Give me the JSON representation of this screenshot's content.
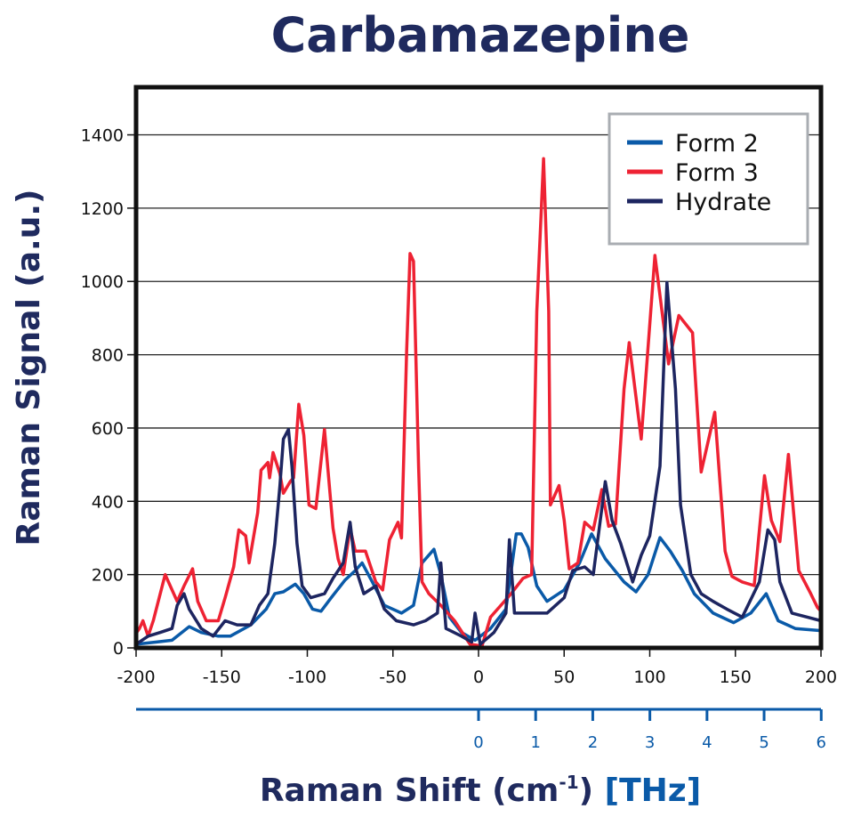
{
  "chart_data": {
    "type": "line",
    "title": "Carbamazepine",
    "xlabel": "Raman Shift (cm-1)",
    "xlabel_parts": {
      "main": "Raman Shift (cm",
      "sup": "-1",
      "close": ")",
      "secondary": "[THz]"
    },
    "ylabel": "Raman Signal (a.u.)",
    "xlim": [
      -200,
      200
    ],
    "ylim": [
      0,
      1530
    ],
    "xticks": [
      -200,
      -150,
      -100,
      -50,
      0,
      50,
      100,
      150,
      200
    ],
    "yticks": [
      0,
      200,
      400,
      600,
      800,
      1000,
      1200,
      1400
    ],
    "secondary_xaxis": {
      "unit": "THz",
      "ticks": [
        0,
        1,
        2,
        3,
        4,
        5,
        6
      ],
      "color": "#0a5aa8"
    },
    "grid": "horizontal",
    "legend_position": "top-right",
    "series": [
      {
        "name": "Form 2",
        "color": "#0a5aa8",
        "points": [
          [
            -200,
            10
          ],
          [
            -188,
            16
          ],
          [
            -179,
            21
          ],
          [
            -169,
            58
          ],
          [
            -162,
            42
          ],
          [
            -152,
            32
          ],
          [
            -145,
            32
          ],
          [
            -133,
            63
          ],
          [
            -124,
            106
          ],
          [
            -119,
            148
          ],
          [
            -114,
            153
          ],
          [
            -107,
            174
          ],
          [
            -102,
            148
          ],
          [
            -97,
            106
          ],
          [
            -92,
            100
          ],
          [
            -86,
            137
          ],
          [
            -78,
            185
          ],
          [
            -72,
            211
          ],
          [
            -68,
            232
          ],
          [
            -62,
            180
          ],
          [
            -55,
            116
          ],
          [
            -45,
            95
          ],
          [
            -38,
            116
          ],
          [
            -33,
            232
          ],
          [
            -26,
            269
          ],
          [
            -22,
            200
          ],
          [
            -17,
            84
          ],
          [
            -10,
            42
          ],
          [
            -2,
            21
          ],
          [
            7,
            53
          ],
          [
            16,
            106
          ],
          [
            22,
            311
          ],
          [
            25,
            311
          ],
          [
            29,
            274
          ],
          [
            34,
            169
          ],
          [
            40,
            127
          ],
          [
            50,
            158
          ],
          [
            59,
            232
          ],
          [
            66,
            311
          ],
          [
            74,
            243
          ],
          [
            85,
            180
          ],
          [
            92,
            153
          ],
          [
            99,
            200
          ],
          [
            106,
            301
          ],
          [
            112,
            264
          ],
          [
            119,
            211
          ],
          [
            126,
            148
          ],
          [
            137,
            95
          ],
          [
            149,
            69
          ],
          [
            159,
            95
          ],
          [
            168,
            148
          ],
          [
            175,
            74
          ],
          [
            185,
            53
          ],
          [
            200,
            47
          ]
        ]
      },
      {
        "name": "Form 3",
        "color": "#ee2233",
        "points": [
          [
            -200,
            40
          ],
          [
            -198,
            53
          ],
          [
            -196,
            74
          ],
          [
            -193,
            32
          ],
          [
            -190,
            74
          ],
          [
            -183,
            200
          ],
          [
            -176,
            127
          ],
          [
            -172,
            169
          ],
          [
            -167,
            216
          ],
          [
            -164,
            127
          ],
          [
            -159,
            74
          ],
          [
            -152,
            74
          ],
          [
            -148,
            137
          ],
          [
            -143,
            221
          ],
          [
            -140,
            322
          ],
          [
            -136,
            306
          ],
          [
            -134,
            232
          ],
          [
            -129,
            369
          ],
          [
            -127,
            485
          ],
          [
            -123,
            506
          ],
          [
            -122,
            464
          ],
          [
            -120,
            533
          ],
          [
            -116,
            475
          ],
          [
            -114,
            422
          ],
          [
            -110,
            454
          ],
          [
            -108,
            464
          ],
          [
            -105,
            665
          ],
          [
            -102,
            580
          ],
          [
            -99,
            390
          ],
          [
            -95,
            380
          ],
          [
            -90,
            596
          ],
          [
            -85,
            327
          ],
          [
            -82,
            243
          ],
          [
            -79,
            200
          ],
          [
            -75,
            327
          ],
          [
            -72,
            264
          ],
          [
            -66,
            264
          ],
          [
            -60,
            180
          ],
          [
            -56,
            158
          ],
          [
            -52,
            295
          ],
          [
            -47,
            343
          ],
          [
            -45,
            300
          ],
          [
            -42,
            812
          ],
          [
            -40,
            1076
          ],
          [
            -38,
            1055
          ],
          [
            -35,
            496
          ],
          [
            -33,
            180
          ],
          [
            -29,
            148
          ],
          [
            -22,
            116
          ],
          [
            -14,
            74
          ],
          [
            -5,
            10
          ],
          [
            2,
            5
          ],
          [
            7,
            84
          ],
          [
            19,
            148
          ],
          [
            26,
            190
          ],
          [
            31,
            200
          ],
          [
            34,
            918
          ],
          [
            38,
            1335
          ],
          [
            41,
            918
          ],
          [
            42,
            390
          ],
          [
            47,
            443
          ],
          [
            50,
            348
          ],
          [
            53,
            216
          ],
          [
            58,
            232
          ],
          [
            62,
            343
          ],
          [
            67,
            322
          ],
          [
            72,
            432
          ],
          [
            76,
            332
          ],
          [
            80,
            338
          ],
          [
            85,
            707
          ],
          [
            88,
            833
          ],
          [
            95,
            570
          ],
          [
            103,
            1071
          ],
          [
            111,
            775
          ],
          [
            117,
            907
          ],
          [
            125,
            860
          ],
          [
            130,
            480
          ],
          [
            138,
            643
          ],
          [
            144,
            264
          ],
          [
            148,
            195
          ],
          [
            154,
            180
          ],
          [
            161,
            170
          ],
          [
            167,
            470
          ],
          [
            171,
            348
          ],
          [
            176,
            290
          ],
          [
            181,
            528
          ],
          [
            187,
            211
          ],
          [
            194,
            148
          ],
          [
            198,
            110
          ],
          [
            200,
            100
          ]
        ]
      },
      {
        "name": "Hydrate",
        "color": "#1d2560",
        "points": [
          [
            -200,
            10
          ],
          [
            -193,
            32
          ],
          [
            -186,
            42
          ],
          [
            -179,
            53
          ],
          [
            -176,
            116
          ],
          [
            -172,
            148
          ],
          [
            -169,
            106
          ],
          [
            -162,
            53
          ],
          [
            -155,
            32
          ],
          [
            -148,
            74
          ],
          [
            -141,
            63
          ],
          [
            -133,
            63
          ],
          [
            -128,
            116
          ],
          [
            -123,
            148
          ],
          [
            -119,
            285
          ],
          [
            -116,
            443
          ],
          [
            -114,
            570
          ],
          [
            -111,
            596
          ],
          [
            -109,
            496
          ],
          [
            -106,
            285
          ],
          [
            -103,
            169
          ],
          [
            -98,
            137
          ],
          [
            -90,
            148
          ],
          [
            -85,
            190
          ],
          [
            -79,
            232
          ],
          [
            -75,
            343
          ],
          [
            -72,
            221
          ],
          [
            -67,
            148
          ],
          [
            -60,
            169
          ],
          [
            -55,
            106
          ],
          [
            -48,
            74
          ],
          [
            -38,
            63
          ],
          [
            -31,
            74
          ],
          [
            -24,
            95
          ],
          [
            -22,
            232
          ],
          [
            -19,
            53
          ],
          [
            -10,
            32
          ],
          [
            -4,
            16
          ],
          [
            -2,
            95
          ],
          [
            1,
            10
          ],
          [
            9,
            42
          ],
          [
            16,
            95
          ],
          [
            18,
            295
          ],
          [
            21,
            95
          ],
          [
            29,
            95
          ],
          [
            40,
            95
          ],
          [
            50,
            137
          ],
          [
            55,
            211
          ],
          [
            62,
            221
          ],
          [
            67,
            200
          ],
          [
            74,
            454
          ],
          [
            78,
            348
          ],
          [
            83,
            285
          ],
          [
            90,
            180
          ],
          [
            95,
            253
          ],
          [
            100,
            306
          ],
          [
            106,
            496
          ],
          [
            110,
            997
          ],
          [
            115,
            707
          ],
          [
            118,
            390
          ],
          [
            124,
            200
          ],
          [
            130,
            148
          ],
          [
            137,
            127
          ],
          [
            145,
            106
          ],
          [
            154,
            84
          ],
          [
            164,
            180
          ],
          [
            169,
            322
          ],
          [
            173,
            295
          ],
          [
            176,
            180
          ],
          [
            183,
            95
          ],
          [
            192,
            84
          ],
          [
            200,
            74
          ]
        ]
      }
    ]
  }
}
